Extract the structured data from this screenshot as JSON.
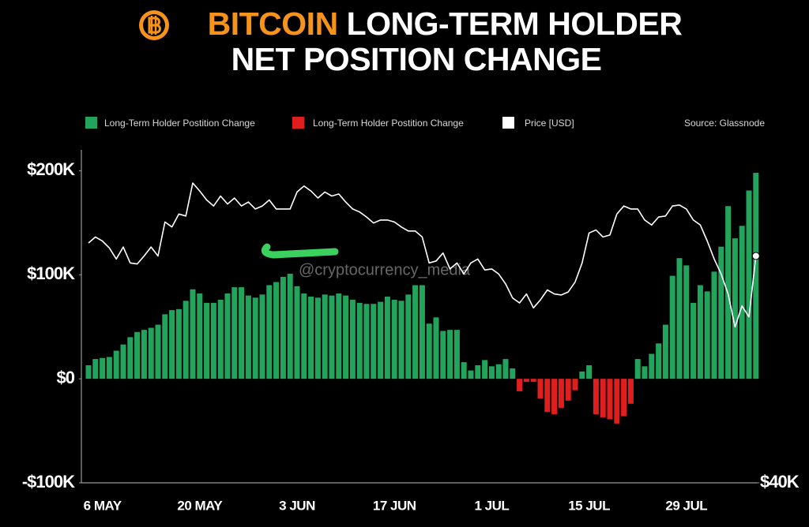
{
  "chart_data": {
    "type": "bar",
    "title_highlight": "BITCOIN",
    "title_lines": [
      "LONG-TERM HOLDER",
      "NET POSITION CHANGE"
    ],
    "source": "Source: Glassnode",
    "watermark": "@cryptocurrency_media",
    "categories": [
      null,
      null,
      "6 MAY",
      null,
      null,
      null,
      null,
      null,
      null,
      null,
      null,
      null,
      null,
      null,
      null,
      null,
      "20 MAY",
      null,
      null,
      null,
      null,
      null,
      null,
      null,
      null,
      null,
      null,
      null,
      null,
      null,
      "3 JUN",
      null,
      null,
      null,
      null,
      null,
      null,
      null,
      null,
      null,
      null,
      null,
      null,
      null,
      "17 JUN",
      null,
      null,
      null,
      null,
      null,
      null,
      null,
      null,
      null,
      null,
      null,
      null,
      null,
      "1 JUL",
      null,
      null,
      null,
      null,
      null,
      null,
      null,
      null,
      null,
      null,
      null,
      null,
      null,
      "15 JUL",
      null,
      null,
      null,
      null,
      null,
      null,
      null,
      null,
      null,
      null,
      null,
      null,
      null,
      "29 JUL",
      null,
      null,
      null,
      null,
      null,
      null,
      null,
      null,
      null,
      null
    ],
    "series": [
      {
        "name": "Long-Term Holder Postition Change",
        "color": "#22a45d",
        "values": [
          13000,
          19000,
          20000,
          21000,
          27000,
          33000,
          40000,
          45000,
          47000,
          49000,
          52000,
          62000,
          66000,
          67000,
          75000,
          86000,
          82000,
          73000,
          73000,
          76000,
          82000,
          88000,
          88000,
          80000,
          78000,
          81000,
          90000,
          93000,
          98000,
          101000,
          89000,
          82000,
          79000,
          78000,
          81000,
          80000,
          82000,
          80000,
          76000,
          73000,
          72000,
          72000,
          74000,
          79000,
          76000,
          75000,
          81000,
          90000,
          90000,
          53000,
          59000,
          46000,
          47000,
          47000,
          16000,
          8000,
          13000,
          18000,
          12000,
          14000,
          19000,
          10000,
          null,
          null,
          null,
          null,
          null,
          null,
          null,
          null,
          null,
          7000,
          13000,
          null,
          null,
          null,
          null,
          null,
          null,
          19000,
          12000,
          24000,
          34000,
          52000,
          99000,
          116000,
          109000,
          73000,
          90000,
          84000,
          103000,
          127000,
          166000,
          135000,
          147000,
          181000,
          198000
        ]
      },
      {
        "name": "Long-Term Holder Postition Change",
        "color": "#e01e1e",
        "values": [
          null,
          null,
          null,
          null,
          null,
          null,
          null,
          null,
          null,
          null,
          null,
          null,
          null,
          null,
          null,
          null,
          null,
          null,
          null,
          null,
          null,
          null,
          null,
          null,
          null,
          null,
          null,
          null,
          null,
          null,
          null,
          null,
          null,
          null,
          null,
          null,
          null,
          null,
          null,
          null,
          null,
          null,
          null,
          null,
          null,
          null,
          null,
          null,
          null,
          null,
          null,
          null,
          null,
          null,
          null,
          null,
          null,
          null,
          null,
          null,
          null,
          null,
          -12000,
          -3000,
          -3000,
          -19000,
          -32000,
          -34000,
          -28000,
          -21000,
          -11000,
          null,
          null,
          -34000,
          -37000,
          -39000,
          -43000,
          -36000,
          -24000,
          null,
          null,
          null,
          null,
          null,
          null,
          null,
          null,
          null,
          null,
          null,
          null,
          null,
          null,
          null,
          null,
          null,
          null
        ]
      },
      {
        "name": "Price [USD]",
        "color": "#ffffff",
        "type": "line",
        "axis": "y2",
        "values": [
          64000,
          64600,
          64200,
          63500,
          62400,
          63600,
          62000,
          61900,
          62700,
          63600,
          62700,
          66100,
          65600,
          66900,
          66700,
          70000,
          69200,
          68300,
          67700,
          68700,
          67900,
          68500,
          67700,
          68100,
          67400,
          67700,
          68300,
          67400,
          67400,
          67400,
          69100,
          69700,
          69200,
          68500,
          69100,
          68700,
          68900,
          68100,
          67400,
          67100,
          66600,
          66000,
          66300,
          66300,
          66100,
          65600,
          65200,
          65200,
          64600,
          62000,
          62200,
          63000,
          61400,
          62000,
          60900,
          62000,
          62400,
          61300,
          61400,
          60900,
          59900,
          58500,
          58000,
          58900,
          57500,
          58300,
          59300,
          58900,
          58800,
          59100,
          60100,
          62000,
          65000,
          65300,
          64600,
          64800,
          66900,
          67700,
          67400,
          67400,
          66300,
          65800,
          66600,
          66700,
          67700,
          67800,
          67400,
          66300,
          65800,
          64200,
          62400,
          60900,
          58900,
          55600,
          57700,
          56600,
          62700
        ]
      }
    ],
    "ylim": [
      -100000,
      217000
    ],
    "yticks": [
      {
        "value": -100000,
        "label": "-$100K"
      },
      {
        "value": 0,
        "label": "$0"
      },
      {
        "value": 100000,
        "label": "$100K"
      },
      {
        "value": 200000,
        "label": "$200K"
      }
    ],
    "y2lim": [
      40000,
      73000
    ],
    "y2ticks": [
      {
        "value": 40000,
        "label": "$40K"
      }
    ],
    "grid": false,
    "legend": "top"
  }
}
